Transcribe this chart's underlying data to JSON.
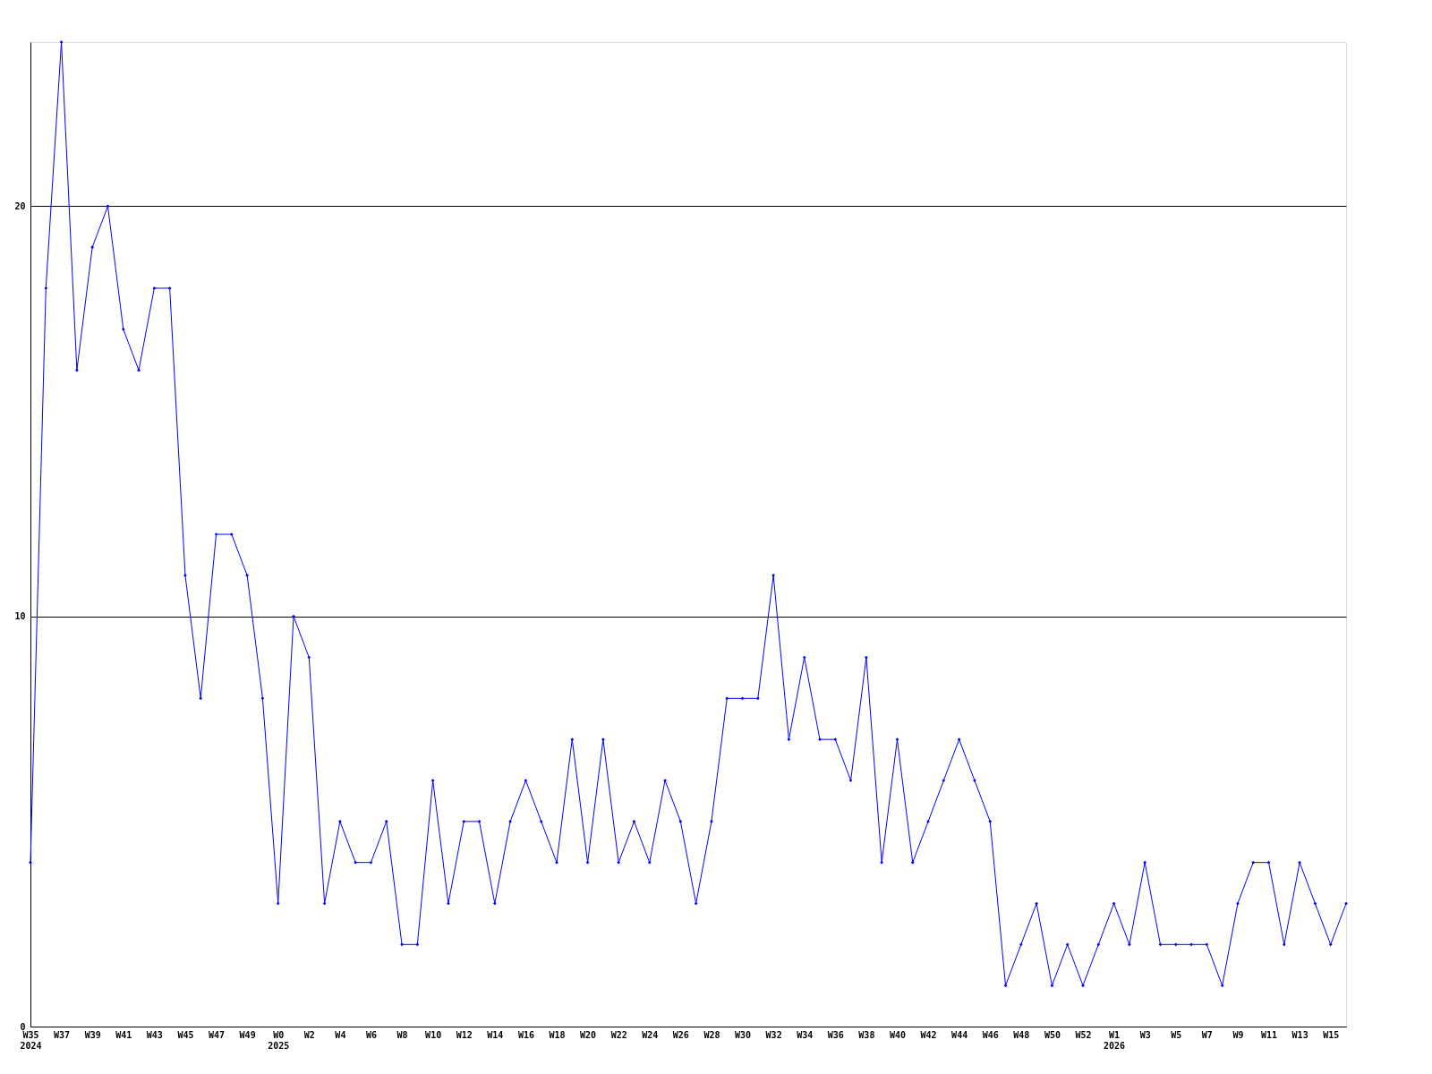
{
  "chart_data": {
    "type": "line",
    "categories": [
      "W35\n2024",
      null,
      "W37",
      null,
      "W39",
      null,
      "W41",
      null,
      "W43",
      null,
      "W45",
      null,
      "W47",
      null,
      "W49",
      null,
      "W0\n2025",
      null,
      "W2",
      null,
      "W4",
      null,
      "W6",
      null,
      "W8",
      null,
      "W10",
      null,
      "W12",
      null,
      "W14",
      null,
      "W16",
      null,
      "W18",
      null,
      "W20",
      null,
      "W22",
      null,
      "W24",
      null,
      "W26",
      null,
      "W28",
      null,
      "W30",
      null,
      "W32",
      null,
      "W34",
      null,
      "W36",
      null,
      "W38",
      null,
      "W40",
      null,
      "W42",
      null,
      "W44",
      null,
      "W46",
      null,
      "W48",
      null,
      "W50",
      null,
      "W52",
      null,
      "W1\n2026",
      null,
      "W3",
      null,
      "W5",
      null,
      "W7",
      null,
      "W9",
      null,
      "W11",
      null,
      "W13",
      null,
      "W15",
      null
    ],
    "series": [
      {
        "color": "#0000ff",
        "values": [
          4,
          18,
          24,
          16,
          19,
          20,
          17,
          16,
          18,
          18,
          11,
          8,
          12,
          12,
          11,
          8,
          3,
          10,
          9,
          3,
          5,
          4,
          4,
          5,
          2,
          2,
          6,
          3,
          5,
          5,
          3,
          5,
          6,
          5,
          4,
          7,
          4,
          7,
          4,
          5,
          4,
          6,
          5,
          3,
          5,
          8,
          8,
          8,
          11,
          7,
          9,
          7,
          7,
          6,
          9,
          4,
          7,
          4,
          5,
          6,
          7,
          6,
          5,
          1,
          2,
          3,
          1,
          2,
          1,
          2,
          3,
          2,
          4,
          2,
          2,
          2,
          2,
          1,
          3,
          4,
          4,
          2,
          4,
          3,
          2,
          3
        ]
      }
    ],
    "ylim": [
      0,
      24
    ],
    "yticks": [
      0,
      10,
      20
    ],
    "grid": "y",
    "marker": "diamond",
    "line_style": "solid"
  }
}
